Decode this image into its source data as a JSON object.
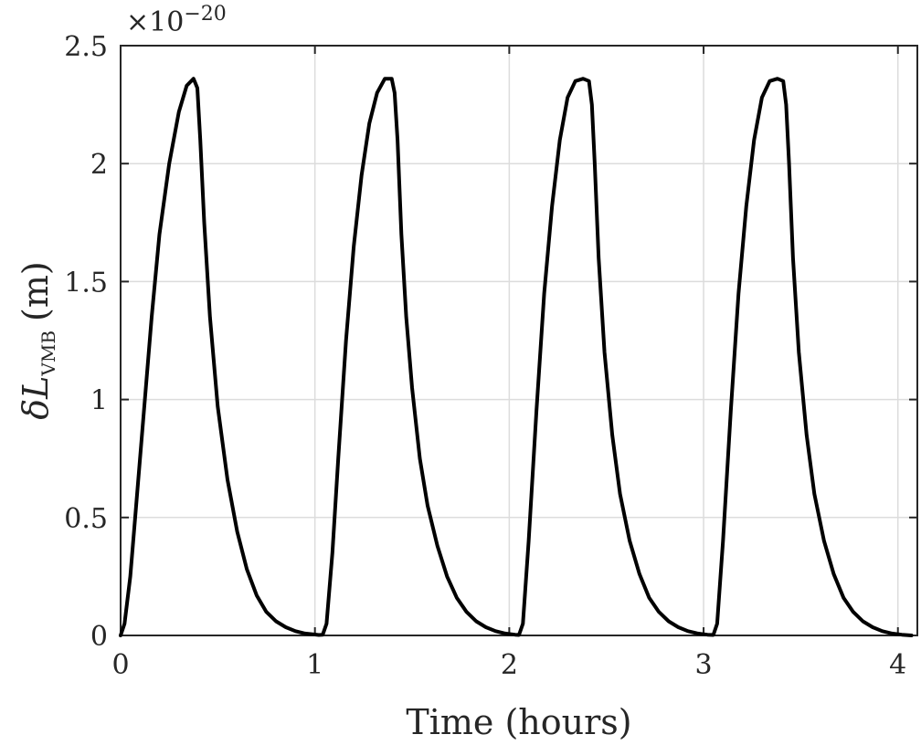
{
  "chart_data": {
    "type": "line",
    "xlabel": "Time (hours)",
    "ylabel": {
      "prefix": "δ",
      "symbol": "L",
      "subscript": "VMB",
      "unit": "(m)"
    },
    "y_multiplier": {
      "base": "×10",
      "exponent": "−20"
    },
    "xlim": [
      0,
      4.1
    ],
    "ylim": [
      0,
      2.5
    ],
    "xticks": [
      0,
      1,
      2,
      3,
      4
    ],
    "xtick_labels": [
      "0",
      "1",
      "2",
      "3",
      "4"
    ],
    "yticks": [
      0,
      0.5,
      1,
      1.5,
      2,
      2.5
    ],
    "ytick_labels": [
      "0",
      "0.5",
      "1",
      "1.5",
      "2",
      "2.5"
    ],
    "grid": true,
    "line_color": "#000000",
    "grid_color": "#dcdcdc",
    "series": [
      {
        "x": [
          0.0,
          0.02,
          0.05,
          0.08,
          0.12,
          0.16,
          0.2,
          0.25,
          0.3,
          0.34,
          0.375,
          0.385,
          0.395,
          0.41,
          0.43,
          0.46,
          0.5,
          0.55,
          0.6,
          0.65,
          0.7,
          0.75,
          0.8,
          0.85,
          0.9,
          0.95,
          1.0,
          1.02,
          1.04,
          1.06,
          1.09,
          1.12,
          1.16,
          1.2,
          1.24,
          1.28,
          1.32,
          1.36,
          1.395,
          1.41,
          1.425,
          1.445,
          1.47,
          1.5,
          1.54,
          1.58,
          1.63,
          1.68,
          1.73,
          1.78,
          1.83,
          1.88,
          1.93,
          1.98,
          2.03,
          2.05,
          2.07,
          2.1,
          2.14,
          2.18,
          2.22,
          2.26,
          2.3,
          2.34,
          2.38,
          2.41,
          2.425,
          2.44,
          2.46,
          2.49,
          2.53,
          2.57,
          2.62,
          2.67,
          2.72,
          2.77,
          2.82,
          2.87,
          2.92,
          2.97,
          3.02,
          3.05,
          3.07,
          3.1,
          3.14,
          3.18,
          3.22,
          3.26,
          3.3,
          3.34,
          3.38,
          3.41,
          3.425,
          3.44,
          3.46,
          3.49,
          3.53,
          3.57,
          3.62,
          3.67,
          3.72,
          3.77,
          3.82,
          3.87,
          3.92,
          3.97,
          4.02,
          4.07
        ],
        "y": [
          0.0,
          0.05,
          0.25,
          0.55,
          0.95,
          1.35,
          1.7,
          2.0,
          2.22,
          2.33,
          2.36,
          2.34,
          2.32,
          2.1,
          1.75,
          1.35,
          0.97,
          0.66,
          0.44,
          0.28,
          0.17,
          0.1,
          0.06,
          0.035,
          0.018,
          0.008,
          0.004,
          0.002,
          0.003,
          0.05,
          0.35,
          0.75,
          1.25,
          1.65,
          1.95,
          2.17,
          2.3,
          2.36,
          2.36,
          2.3,
          2.1,
          1.7,
          1.35,
          1.05,
          0.75,
          0.55,
          0.38,
          0.25,
          0.16,
          0.1,
          0.06,
          0.035,
          0.018,
          0.008,
          0.003,
          0.002,
          0.05,
          0.4,
          0.95,
          1.45,
          1.82,
          2.1,
          2.28,
          2.35,
          2.36,
          2.35,
          2.25,
          2.0,
          1.6,
          1.2,
          0.85,
          0.6,
          0.4,
          0.26,
          0.16,
          0.1,
          0.06,
          0.035,
          0.018,
          0.008,
          0.003,
          0.002,
          0.05,
          0.4,
          0.95,
          1.45,
          1.82,
          2.1,
          2.28,
          2.35,
          2.36,
          2.35,
          2.25,
          2.0,
          1.6,
          1.2,
          0.85,
          0.6,
          0.4,
          0.26,
          0.16,
          0.1,
          0.06,
          0.035,
          0.018,
          0.008,
          0.003,
          0.0
        ]
      }
    ]
  }
}
